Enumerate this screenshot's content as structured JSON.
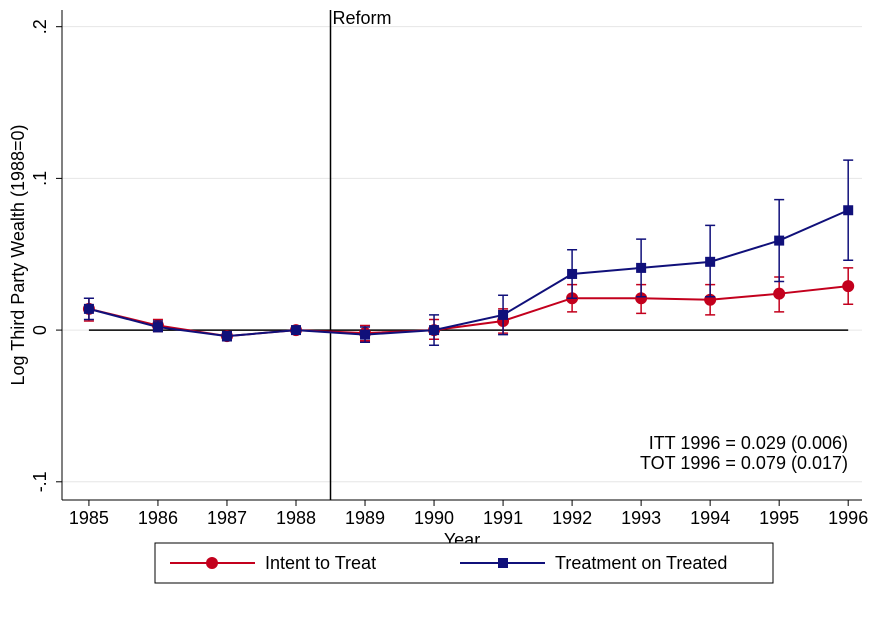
{
  "chart_data": {
    "type": "line",
    "y_label": "Log Third Party Wealth (1988=0)",
    "x_label": "Year",
    "x": [
      1985,
      1986,
      1987,
      1988,
      1989,
      1990,
      1991,
      1992,
      1993,
      1994,
      1995,
      1996
    ],
    "series": [
      {
        "name": "Intent to Treat",
        "color": "#c3001d",
        "marker": "circle",
        "values": [
          0.014,
          0.003,
          -0.004,
          0,
          -0.002,
          0,
          0.006,
          0.021,
          0.021,
          0.02,
          0.024,
          0.029
        ],
        "lower": [
          0.006,
          -0.001,
          -0.007,
          0,
          -0.007,
          -0.006,
          -0.002,
          0.012,
          0.011,
          0.01,
          0.012,
          0.017
        ],
        "upper": [
          0.021,
          0.007,
          -0.001,
          0,
          0.003,
          0.007,
          0.014,
          0.03,
          0.03,
          0.03,
          0.035,
          0.041
        ]
      },
      {
        "name": "Treatment on Treated",
        "color": "#10107a",
        "marker": "square",
        "values": [
          0.014,
          0.002,
          -0.004,
          0,
          -0.003,
          0,
          0.01,
          0.037,
          0.041,
          0.045,
          0.059,
          0.079
        ],
        "lower": [
          0.007,
          -0.001,
          -0.007,
          0,
          -0.008,
          -0.01,
          -0.003,
          0.021,
          0.022,
          0.022,
          0.032,
          0.046
        ],
        "upper": [
          0.021,
          0.006,
          -0.001,
          0,
          0.002,
          0.01,
          0.023,
          0.053,
          0.06,
          0.069,
          0.086,
          0.112
        ]
      }
    ],
    "xlim": [
      1984.61,
      1996.2
    ],
    "ylim": [
      -0.112,
      0.211
    ],
    "xticks": [
      1985,
      1986,
      1987,
      1988,
      1989,
      1990,
      1991,
      1992,
      1993,
      1994,
      1995,
      1996
    ],
    "yticks": [
      {
        "value": -0.1,
        "label": "-.1"
      },
      0,
      {
        "value": 0.1,
        "label": ".1"
      },
      {
        "value": 0.2,
        "label": ".2"
      }
    ],
    "grid": true,
    "reference_x": {
      "value": 1988.5,
      "label": "Reform"
    },
    "reference_y": 0,
    "annotations": [
      "ITT 1996 = 0.029 (0.006)",
      "TOT 1996 = 0.079 (0.017)"
    ],
    "legend": "bottom"
  }
}
